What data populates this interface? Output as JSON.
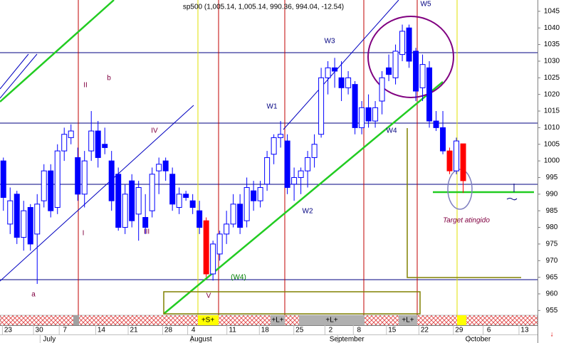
{
  "chart_data": {
    "type": "candlestick",
    "title": "sp500 (1,005.14, 1,005.14, 990.36, 994.04, -12.54)",
    "color": "#0000ff",
    "ylim": [
      954,
      1048.4
    ],
    "yticks": [
      955,
      960,
      965,
      970,
      975,
      980,
      985,
      990,
      995,
      1000,
      1005,
      1010,
      1015,
      1020,
      1025,
      1030,
      1035,
      1040,
      1045
    ],
    "xlim": [
      -0.5,
      79
    ],
    "xticks": [
      {
        "value": 0.7,
        "label": "23"
      },
      {
        "value": 5.3,
        "label": "30"
      },
      {
        "value": 9.1,
        "label": "7"
      },
      {
        "value": 14.5,
        "label": "14"
      },
      {
        "value": 19.3,
        "label": "21"
      },
      {
        "value": 24.4,
        "label": "28"
      },
      {
        "value": 28.1,
        "label": "4"
      },
      {
        "value": 33.9,
        "label": "11"
      },
      {
        "value": 38.7,
        "label": "18"
      },
      {
        "value": 43.8,
        "label": "25"
      },
      {
        "value": 48.4,
        "label": "2"
      },
      {
        "value": 52.6,
        "label": "8"
      },
      {
        "value": 57.5,
        "label": "15"
      },
      {
        "value": 62.3,
        "label": "22"
      },
      {
        "value": 67.4,
        "label": "29"
      },
      {
        "value": 71.8,
        "label": "6"
      },
      {
        "value": 77.1,
        "label": "13"
      }
    ],
    "months": [
      {
        "value": 6.8,
        "label": "July"
      },
      {
        "value": 29.2,
        "label": "August"
      },
      {
        "value": 50.8,
        "label": "September"
      },
      {
        "value": 70.2,
        "label": "October"
      }
    ],
    "candles": [
      {
        "o": 1000,
        "h": 1001,
        "l": 985,
        "c": 989
      },
      {
        "o": 981,
        "h": 992,
        "l": 978,
        "c": 988
      },
      {
        "o": 990,
        "h": 991,
        "l": 975,
        "c": 977
      },
      {
        "o": 977,
        "h": 988,
        "l": 973,
        "c": 985
      },
      {
        "o": 986,
        "h": 987,
        "l": 973,
        "c": 975
      },
      {
        "o": 978,
        "h": 990,
        "l": 963,
        "c": 987
      },
      {
        "o": 988,
        "h": 999,
        "l": 986,
        "c": 997
      },
      {
        "o": 997,
        "h": 999,
        "l": 983,
        "c": 985
      },
      {
        "o": 986,
        "h": 1005,
        "l": 984,
        "c": 1003
      },
      {
        "o": 1003,
        "h": 1010,
        "l": 1000,
        "c": 1008
      },
      {
        "o": 1007,
        "h": 1011,
        "l": 1005,
        "c": 1009
      },
      {
        "o": 1001,
        "h": 1004,
        "l": 988,
        "c": 990
      },
      {
        "o": 990,
        "h": 1003,
        "l": 986,
        "c": 1000
      },
      {
        "o": 1003,
        "h": 1015,
        "l": 1000,
        "c": 1009
      },
      {
        "o": 1009,
        "h": 1012,
        "l": 998,
        "c": 1001
      },
      {
        "o": 1005,
        "h": 1010,
        "l": 1002,
        "c": 1004
      },
      {
        "o": 1000,
        "h": 1003,
        "l": 985,
        "c": 988
      },
      {
        "o": 996,
        "h": 998,
        "l": 979,
        "c": 980
      },
      {
        "o": 980,
        "h": 993,
        "l": 978,
        "c": 990
      },
      {
        "o": 994,
        "h": 996,
        "l": 980,
        "c": 982
      },
      {
        "o": 984,
        "h": 994,
        "l": 976,
        "c": 992
      },
      {
        "o": 983,
        "h": 990,
        "l": 978,
        "c": 980
      },
      {
        "o": 985,
        "h": 998,
        "l": 983,
        "c": 996
      },
      {
        "o": 997,
        "h": 1001,
        "l": 990,
        "c": 999
      },
      {
        "o": 1000,
        "h": 1001,
        "l": 994,
        "c": 997
      },
      {
        "o": 996,
        "h": 998,
        "l": 985,
        "c": 987
      },
      {
        "o": 986,
        "h": 992,
        "l": 984,
        "c": 990
      },
      {
        "o": 990,
        "h": 991,
        "l": 988,
        "c": 989
      },
      {
        "o": 988,
        "h": 990,
        "l": 984,
        "c": 986
      },
      {
        "o": 985,
        "h": 988,
        "l": 978,
        "c": 980
      },
      {
        "o": 982,
        "h": 983,
        "l": 965,
        "c": 966,
        "color": "#ff0000"
      },
      {
        "o": 966,
        "h": 976,
        "l": 964,
        "c": 975
      },
      {
        "o": 972,
        "h": 979,
        "l": 970,
        "c": 978
      },
      {
        "o": 978,
        "h": 985,
        "l": 975,
        "c": 981
      },
      {
        "o": 981,
        "h": 990,
        "l": 980,
        "c": 987
      },
      {
        "o": 987,
        "h": 990,
        "l": 978,
        "c": 980
      },
      {
        "o": 982,
        "h": 995,
        "l": 980,
        "c": 992
      },
      {
        "o": 991,
        "h": 994,
        "l": 985,
        "c": 988
      },
      {
        "o": 988,
        "h": 994,
        "l": 986,
        "c": 992
      },
      {
        "o": 993,
        "h": 1003,
        "l": 991,
        "c": 1001
      },
      {
        "o": 1002,
        "h": 1008,
        "l": 999,
        "c": 1007
      },
      {
        "o": 1007,
        "h": 1012,
        "l": 1004,
        "c": 1008
      },
      {
        "o": 1006,
        "h": 1008,
        "l": 990,
        "c": 992
      },
      {
        "o": 993,
        "h": 998,
        "l": 988,
        "c": 995
      },
      {
        "o": 995,
        "h": 998,
        "l": 990,
        "c": 997
      },
      {
        "o": 997,
        "h": 1003,
        "l": 992,
        "c": 1001
      },
      {
        "o": 1001,
        "h": 1008,
        "l": 998,
        "c": 1005
      },
      {
        "o": 1008,
        "h": 1028,
        "l": 1007,
        "c": 1025
      },
      {
        "o": 1025,
        "h": 1030,
        "l": 1020,
        "c": 1028
      },
      {
        "o": 1028,
        "h": 1031,
        "l": 1022,
        "c": 1027
      },
      {
        "o": 1025,
        "h": 1030,
        "l": 1018,
        "c": 1022
      },
      {
        "o": 1022,
        "h": 1027,
        "l": 1020,
        "c": 1025
      },
      {
        "o": 1023,
        "h": 1024,
        "l": 1008,
        "c": 1010
      },
      {
        "o": 1010,
        "h": 1018,
        "l": 1008,
        "c": 1016
      },
      {
        "o": 1016,
        "h": 1020,
        "l": 1010,
        "c": 1012
      },
      {
        "o": 1012,
        "h": 1018,
        "l": 1010,
        "c": 1016
      },
      {
        "o": 1018,
        "h": 1027,
        "l": 1014,
        "c": 1025
      },
      {
        "o": 1028,
        "h": 1032,
        "l": 1024,
        "c": 1026
      },
      {
        "o": 1025,
        "h": 1035,
        "l": 1023,
        "c": 1033
      },
      {
        "o": 1032,
        "h": 1041,
        "l": 1030,
        "c": 1039
      },
      {
        "o": 1040,
        "h": 1041,
        "l": 1028,
        "c": 1030
      },
      {
        "o": 1033,
        "h": 1034,
        "l": 1018,
        "c": 1021
      },
      {
        "o": 1022,
        "h": 1032,
        "l": 1018,
        "c": 1029
      },
      {
        "o": 1028,
        "h": 1030,
        "l": 1010,
        "c": 1012
      },
      {
        "o": 1012,
        "h": 1015,
        "l": 1009,
        "c": 1010
      },
      {
        "o": 1010,
        "h": 1015,
        "l": 1002,
        "c": 1003
      },
      {
        "o": 1003,
        "h": 1004,
        "l": 996,
        "c": 997,
        "color": "#ff0000"
      },
      {
        "o": 997,
        "h": 1007,
        "l": 996,
        "c": 1006
      },
      {
        "o": 1005.14,
        "h": 1005.14,
        "l": 990.36,
        "c": 994.04,
        "color": "#ff0000"
      }
    ],
    "annotations": [
      "II",
      "b",
      "IV",
      "I",
      "III",
      "a",
      "V",
      "(W4)",
      "W1",
      "W2",
      "W3",
      "W4",
      "W5",
      "Target atingido"
    ],
    "band_labels": [
      "+S+",
      "+L+",
      "+L+",
      "+L+"
    ]
  }
}
